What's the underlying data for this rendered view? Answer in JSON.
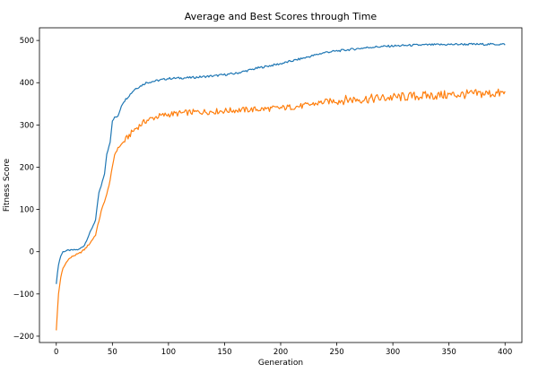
{
  "chart_data": {
    "type": "line",
    "title": "Average and Best Scores through Time",
    "xlabel": "Generation",
    "ylabel": "Fitness Score",
    "xlim": [
      -15,
      415
    ],
    "ylim": [
      -215,
      530
    ],
    "xticks": [
      0,
      50,
      100,
      150,
      200,
      250,
      300,
      350,
      400
    ],
    "yticks": [
      -200,
      -100,
      0,
      100,
      200,
      300,
      400,
      500
    ],
    "xtick_labels": [
      "0",
      "50",
      "100",
      "150",
      "200",
      "250",
      "300",
      "350",
      "400"
    ],
    "ytick_labels": [
      "−200",
      "−100",
      "0",
      "100",
      "200",
      "300",
      "400",
      "500"
    ],
    "grid": false,
    "legend": "none",
    "series": [
      {
        "color": "#1f77b4",
        "x": [
          0,
          2,
          4,
          6,
          10,
          15,
          20,
          25,
          30,
          35,
          38,
          40,
          43,
          45,
          48,
          50,
          52,
          55,
          58,
          60,
          65,
          70,
          75,
          80,
          90,
          100,
          120,
          140,
          160,
          180,
          200,
          220,
          240,
          260,
          280,
          300,
          320,
          340,
          360,
          380,
          400
        ],
        "y": [
          -75,
          -30,
          -10,
          0,
          3,
          4,
          5,
          15,
          45,
          75,
          140,
          155,
          185,
          230,
          260,
          310,
          318,
          320,
          345,
          355,
          370,
          385,
          392,
          400,
          405,
          410,
          412,
          416,
          422,
          435,
          445,
          458,
          472,
          478,
          484,
          487,
          489,
          490,
          491,
          491,
          491
        ]
      },
      {
        "color": "#ff7f0e",
        "x": [
          0,
          2,
          4,
          6,
          10,
          15,
          20,
          25,
          30,
          35,
          40,
          43,
          45,
          48,
          50,
          52,
          55,
          60,
          65,
          70,
          80,
          90,
          100,
          120,
          140,
          160,
          180,
          200,
          220,
          240,
          260,
          280,
          300,
          320,
          340,
          360,
          380,
          400
        ],
        "y": [
          -185,
          -100,
          -60,
          -40,
          -20,
          -10,
          -5,
          5,
          20,
          40,
          95,
          120,
          135,
          170,
          200,
          230,
          245,
          260,
          275,
          290,
          310,
          320,
          325,
          330,
          332,
          335,
          337,
          340,
          345,
          355,
          360,
          362,
          365,
          368,
          370,
          372,
          374,
          375
        ]
      }
    ]
  }
}
